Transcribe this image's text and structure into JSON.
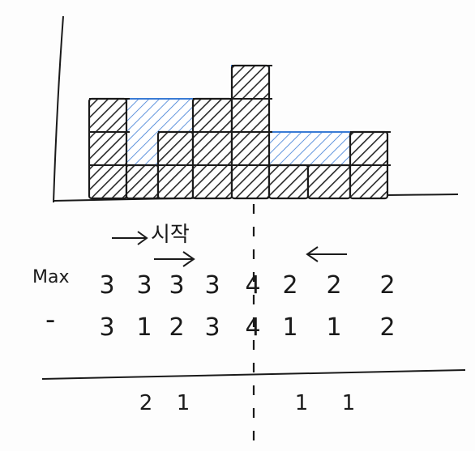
{
  "diagram": {
    "title": "",
    "start_label": "시작",
    "colors": {
      "ink": "#1a1a1a",
      "water": "#3a7bd5",
      "hatch": "#2a2a2a"
    },
    "heights": [
      3,
      1,
      2,
      3,
      4,
      1,
      1,
      2
    ],
    "max_label": "Max",
    "max_values": [
      "3",
      "3",
      "3",
      "3",
      "4",
      "2",
      "2",
      "2"
    ],
    "minus_label": "-",
    "height_values": [
      "3",
      "1",
      "2",
      "3",
      "4",
      "1",
      "1",
      "2"
    ],
    "result_values": [
      "",
      "2",
      "1",
      "",
      "",
      "1",
      "1",
      ""
    ],
    "left_arrow": "→",
    "right_arrow": "←"
  }
}
